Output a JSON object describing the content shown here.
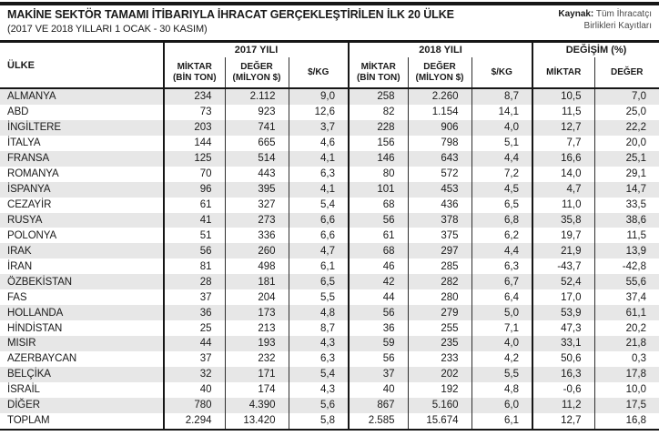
{
  "page": {
    "title": "MAKİNE SEKTÖR TAMAMI İTİBARIYLA İHRACAT GERÇEKLEŞTİRİLEN İLK 20 ÜLKE",
    "subtitle": "(2017 VE 2018 YILLARI 1 OCAK - 30 KASIM)",
    "source_label": "Kaynak:",
    "source_line1": " Tüm İhracatçı",
    "source_line2": "Birlikleri Kayıtları"
  },
  "colors": {
    "rule_black": "#161616",
    "row_alt_gray": "#e7e7e7",
    "text": "#1a1a1a",
    "source_text": "#4a4a4a"
  },
  "chart_data": {
    "type": "table",
    "title": "MAKİNE SEKTÖR TAMAMI İTİBARIYLA İHRACAT GERÇEKLEŞTİRİLEN İLK 20 ÜLKE",
    "subtitle": "(2017 VE 2018 YILLARI 1 OCAK - 30 KASIM)",
    "source": "Kaynak: Tüm İhracatçı Birlikleri Kayıtları",
    "header": {
      "country": "ÜLKE",
      "groups": [
        {
          "label": "2017 YILI",
          "subcolumns": [
            "MİKTAR\n(BİN TON)",
            "DEĞER\n(MİLYON $)",
            "$/KG"
          ]
        },
        {
          "label": "2018 YILI",
          "subcolumns": [
            "MİKTAR\n(BİN TON)",
            "DEĞER\n(MİLYON $)",
            "$/KG"
          ]
        },
        {
          "label": "DEĞİŞİM (%)",
          "subcolumns": [
            "MİKTAR",
            "DEĞER"
          ]
        }
      ]
    },
    "rows": [
      {
        "country": "ALMANYA",
        "values": [
          "234",
          "2.112",
          "9,0",
          "258",
          "2.260",
          "8,7",
          "10,5",
          "7,0"
        ]
      },
      {
        "country": "ABD",
        "values": [
          "73",
          "923",
          "12,6",
          "82",
          "1.154",
          "14,1",
          "11,5",
          "25,0"
        ]
      },
      {
        "country": "İNGİLTERE",
        "values": [
          "203",
          "741",
          "3,7",
          "228",
          "906",
          "4,0",
          "12,7",
          "22,2"
        ]
      },
      {
        "country": "İTALYA",
        "values": [
          "144",
          "665",
          "4,6",
          "156",
          "798",
          "5,1",
          "7,7",
          "20,0"
        ]
      },
      {
        "country": "FRANSA",
        "values": [
          "125",
          "514",
          "4,1",
          "146",
          "643",
          "4,4",
          "16,6",
          "25,1"
        ]
      },
      {
        "country": "ROMANYA",
        "values": [
          "70",
          "443",
          "6,3",
          "80",
          "572",
          "7,2",
          "14,0",
          "29,1"
        ]
      },
      {
        "country": "İSPANYA",
        "values": [
          "96",
          "395",
          "4,1",
          "101",
          "453",
          "4,5",
          "4,7",
          "14,7"
        ]
      },
      {
        "country": "CEZAYİR",
        "values": [
          "61",
          "327",
          "5,4",
          "68",
          "436",
          "6,5",
          "11,0",
          "33,5"
        ]
      },
      {
        "country": "RUSYA",
        "values": [
          "41",
          "273",
          "6,6",
          "56",
          "378",
          "6,8",
          "35,8",
          "38,6"
        ]
      },
      {
        "country": "POLONYA",
        "values": [
          "51",
          "336",
          "6,6",
          "61",
          "375",
          "6,2",
          "19,7",
          "11,5"
        ]
      },
      {
        "country": "IRAK",
        "values": [
          "56",
          "260",
          "4,7",
          "68",
          "297",
          "4,4",
          "21,9",
          "13,9"
        ]
      },
      {
        "country": "İRAN",
        "values": [
          "81",
          "498",
          "6,1",
          "46",
          "285",
          "6,3",
          "-43,7",
          "-42,8"
        ]
      },
      {
        "country": "ÖZBEKİSTAN",
        "values": [
          "28",
          "181",
          "6,5",
          "42",
          "282",
          "6,7",
          "52,4",
          "55,6"
        ]
      },
      {
        "country": "FAS",
        "values": [
          "37",
          "204",
          "5,5",
          "44",
          "280",
          "6,4",
          "17,0",
          "37,4"
        ]
      },
      {
        "country": "HOLLANDA",
        "values": [
          "36",
          "173",
          "4,8",
          "56",
          "279",
          "5,0",
          "53,9",
          "61,1"
        ]
      },
      {
        "country": "HİNDİSTAN",
        "values": [
          "25",
          "213",
          "8,7",
          "36",
          "255",
          "7,1",
          "47,3",
          "20,2"
        ]
      },
      {
        "country": "MISIR",
        "values": [
          "44",
          "193",
          "4,3",
          "59",
          "235",
          "4,0",
          "33,1",
          "21,8"
        ]
      },
      {
        "country": "AZERBAYCAN",
        "values": [
          "37",
          "232",
          "6,3",
          "56",
          "233",
          "4,2",
          "50,6",
          "0,3"
        ]
      },
      {
        "country": "BELÇİKA",
        "values": [
          "32",
          "171",
          "5,4",
          "37",
          "202",
          "5,5",
          "16,3",
          "17,8"
        ]
      },
      {
        "country": "İSRAİL",
        "values": [
          "40",
          "174",
          "4,3",
          "40",
          "192",
          "4,8",
          "-0,6",
          "10,0"
        ]
      },
      {
        "country": "DİĞER",
        "values": [
          "780",
          "4.390",
          "5,6",
          "867",
          "5.160",
          "6,0",
          "11,2",
          "17,5"
        ]
      },
      {
        "country": "TOPLAM",
        "values": [
          "2.294",
          "13.420",
          "5,8",
          "2.585",
          "15.674",
          "6,1",
          "12,7",
          "16,8"
        ]
      }
    ]
  }
}
